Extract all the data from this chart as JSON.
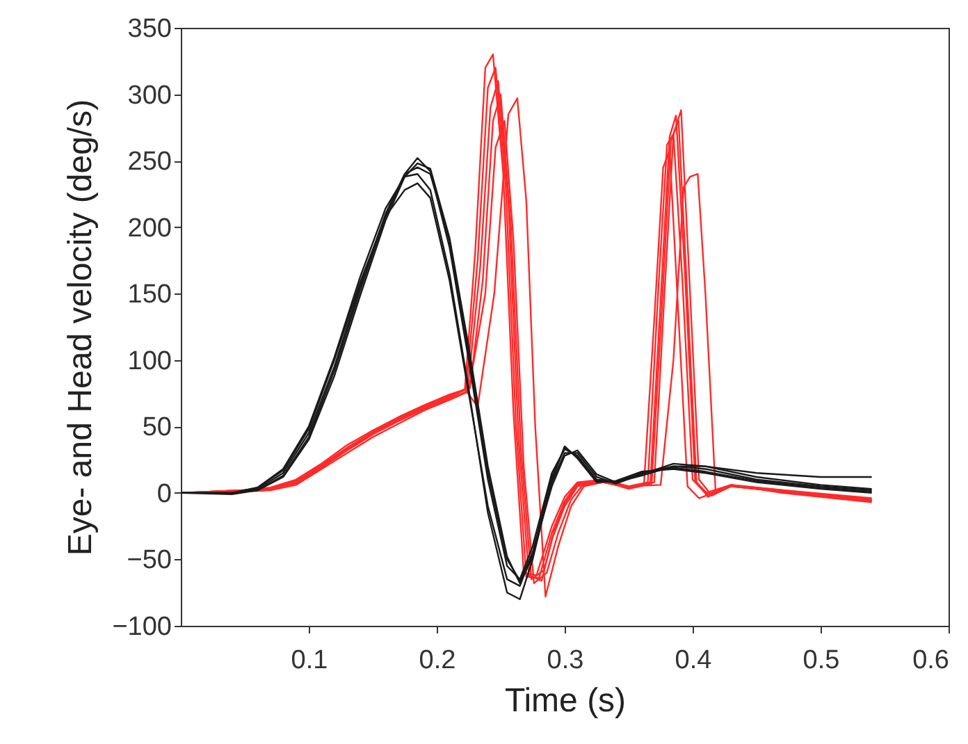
{
  "chart_data": {
    "type": "line",
    "xlabel": "Time (s)",
    "ylabel": "Eye- and Head velocity (deg/s)",
    "xlim": [
      0,
      0.6
    ],
    "xticks": [
      0.1,
      0.2,
      0.3,
      0.4,
      0.5,
      0.6
    ],
    "ylim": [
      -100,
      350
    ],
    "yticks": [
      -100,
      -50,
      0,
      50,
      100,
      150,
      200,
      250,
      300,
      350
    ],
    "line_style": "solid",
    "marker": "none",
    "series": [
      {
        "color": "#ff2a2a",
        "x": [
          0,
          0.05,
          0.07,
          0.09,
          0.11,
          0.13,
          0.15,
          0.17,
          0.19,
          0.21,
          0.222,
          0.23,
          0.238,
          0.244,
          0.252,
          0.26,
          0.268,
          0.278,
          0.29,
          0.3,
          0.31,
          0.33,
          0.35,
          0.365,
          0.373,
          0.38,
          0.385,
          0.392,
          0.4,
          0.41,
          0.43,
          0.47,
          0.54
        ],
        "values": [
          0,
          2,
          3,
          8,
          20,
          33,
          45,
          55,
          64,
          72,
          78,
          180,
          320,
          330,
          240,
          60,
          -60,
          -62,
          -25,
          -3,
          8,
          10,
          5,
          8,
          150,
          262,
          270,
          160,
          10,
          0,
          6,
          2,
          -4
        ]
      },
      {
        "color": "#ff2a2a",
        "x": [
          0,
          0.05,
          0.07,
          0.09,
          0.11,
          0.13,
          0.15,
          0.17,
          0.19,
          0.21,
          0.224,
          0.234,
          0.242,
          0.248,
          0.256,
          0.264,
          0.272,
          0.282,
          0.29,
          0.3,
          0.31,
          0.33,
          0.35,
          0.37,
          0.378,
          0.385,
          0.391,
          0.397,
          0.405,
          0.415,
          0.43,
          0.47,
          0.54
        ],
        "values": [
          0,
          1,
          2,
          6,
          18,
          30,
          42,
          52,
          62,
          70,
          76,
          170,
          290,
          310,
          220,
          40,
          -62,
          -66,
          -35,
          -10,
          5,
          8,
          4,
          8,
          150,
          270,
          288,
          170,
          10,
          -2,
          5,
          1,
          -6
        ]
      },
      {
        "color": "#ff2a2a",
        "x": [
          0,
          0.05,
          0.07,
          0.09,
          0.11,
          0.13,
          0.15,
          0.17,
          0.19,
          0.21,
          0.226,
          0.236,
          0.244,
          0.25,
          0.258,
          0.266,
          0.274,
          0.284,
          0.292,
          0.3,
          0.31,
          0.33,
          0.35,
          0.368,
          0.376,
          0.383,
          0.389,
          0.395,
          0.403,
          0.412,
          0.43,
          0.47,
          0.54
        ],
        "values": [
          0,
          2,
          4,
          10,
          22,
          36,
          47,
          57,
          66,
          74,
          79,
          160,
          280,
          300,
          200,
          30,
          -65,
          -58,
          -28,
          -8,
          6,
          9,
          3,
          7,
          140,
          265,
          280,
          165,
          8,
          -3,
          6,
          0,
          -7
        ]
      },
      {
        "color": "#ff2a2a",
        "x": [
          0,
          0.05,
          0.07,
          0.09,
          0.11,
          0.13,
          0.15,
          0.17,
          0.19,
          0.21,
          0.225,
          0.238,
          0.246,
          0.253,
          0.26,
          0.268,
          0.276,
          0.286,
          0.295,
          0.305,
          0.315,
          0.33,
          0.35,
          0.362,
          0.37,
          0.377,
          0.382,
          0.388,
          0.396,
          0.405,
          0.43,
          0.47,
          0.54
        ],
        "values": [
          0,
          1,
          3,
          7,
          19,
          32,
          44,
          54,
          63,
          71,
          77,
          150,
          260,
          280,
          190,
          20,
          -68,
          -60,
          -30,
          -5,
          7,
          8,
          4,
          7,
          130,
          245,
          258,
          150,
          5,
          -4,
          5,
          1,
          -5
        ]
      },
      {
        "color": "#ff2a2a",
        "x": [
          0,
          0.05,
          0.07,
          0.09,
          0.11,
          0.13,
          0.15,
          0.17,
          0.19,
          0.21,
          0.222,
          0.232,
          0.245,
          0.256,
          0.263,
          0.27,
          0.277,
          0.285,
          0.295,
          0.305,
          0.315,
          0.33,
          0.35,
          0.375,
          0.385,
          0.393,
          0.398,
          0.404,
          0.41,
          0.418,
          0.43,
          0.47,
          0.54
        ],
        "values": [
          0,
          2,
          3,
          9,
          21,
          34,
          46,
          56,
          65,
          73,
          78,
          65,
          150,
          285,
          297,
          220,
          50,
          -78,
          -40,
          -10,
          5,
          8,
          5,
          6,
          100,
          230,
          238,
          240,
          150,
          0,
          5,
          1,
          -6
        ]
      },
      {
        "color": "#ff2a2a",
        "x": [
          0,
          0.05,
          0.07,
          0.09,
          0.11,
          0.13,
          0.15,
          0.17,
          0.19,
          0.21,
          0.223,
          0.232,
          0.24,
          0.246,
          0.254,
          0.262,
          0.27,
          0.28,
          0.29,
          0.3,
          0.31,
          0.33,
          0.35,
          0.367,
          0.375,
          0.382,
          0.387,
          0.394,
          0.402,
          0.412,
          0.43,
          0.47,
          0.54
        ],
        "values": [
          0,
          2,
          3,
          8,
          20,
          34,
          45,
          55,
          64,
          72,
          78,
          175,
          305,
          320,
          230,
          50,
          -63,
          -64,
          -30,
          -6,
          7,
          9,
          4,
          8,
          145,
          268,
          284,
          165,
          9,
          -1,
          6,
          2,
          -5
        ]
      },
      {
        "color": "#1a1a1a",
        "x": [
          0,
          0.04,
          0.06,
          0.08,
          0.1,
          0.12,
          0.14,
          0.16,
          0.175,
          0.185,
          0.195,
          0.21,
          0.225,
          0.24,
          0.255,
          0.265,
          0.275,
          0.29,
          0.3,
          0.31,
          0.325,
          0.34,
          0.36,
          0.385,
          0.41,
          0.45,
          0.5,
          0.54
        ],
        "values": [
          0,
          0,
          3,
          15,
          45,
          95,
          155,
          210,
          240,
          252,
          242,
          185,
          100,
          10,
          -55,
          -65,
          -40,
          15,
          33,
          28,
          10,
          8,
          15,
          20,
          18,
          10,
          5,
          2
        ]
      },
      {
        "color": "#1a1a1a",
        "x": [
          0,
          0.04,
          0.06,
          0.08,
          0.1,
          0.12,
          0.14,
          0.16,
          0.175,
          0.185,
          0.195,
          0.21,
          0.225,
          0.24,
          0.255,
          0.265,
          0.275,
          0.29,
          0.3,
          0.31,
          0.325,
          0.34,
          0.36,
          0.385,
          0.41,
          0.45,
          0.5,
          0.54
        ],
        "values": [
          0,
          0,
          2,
          12,
          40,
          88,
          148,
          205,
          238,
          248,
          244,
          192,
          110,
          20,
          -48,
          -68,
          -48,
          8,
          30,
          30,
          12,
          7,
          14,
          22,
          20,
          12,
          6,
          3
        ]
      },
      {
        "color": "#1a1a1a",
        "x": [
          0,
          0.04,
          0.06,
          0.08,
          0.1,
          0.12,
          0.14,
          0.16,
          0.175,
          0.185,
          0.195,
          0.21,
          0.225,
          0.24,
          0.255,
          0.265,
          0.275,
          0.29,
          0.3,
          0.31,
          0.325,
          0.34,
          0.36,
          0.385,
          0.41,
          0.45,
          0.5,
          0.54
        ],
        "values": [
          0,
          0,
          4,
          18,
          50,
          102,
          162,
          214,
          238,
          240,
          228,
          165,
          78,
          -15,
          -75,
          -80,
          -50,
          10,
          35,
          26,
          8,
          9,
          16,
          18,
          15,
          8,
          3,
          0
        ]
      },
      {
        "color": "#1a1a1a",
        "x": [
          0,
          0.04,
          0.06,
          0.08,
          0.1,
          0.12,
          0.14,
          0.16,
          0.175,
          0.185,
          0.195,
          0.21,
          0.225,
          0.24,
          0.255,
          0.265,
          0.275,
          0.29,
          0.3,
          0.31,
          0.325,
          0.34,
          0.36,
          0.385,
          0.41,
          0.45,
          0.5,
          0.54
        ],
        "values": [
          0,
          0,
          4,
          17,
          48,
          100,
          158,
          208,
          228,
          233,
          222,
          160,
          75,
          -10,
          -65,
          -70,
          -45,
          12,
          34,
          27,
          9,
          8,
          15,
          19,
          16,
          9,
          4,
          1
        ]
      },
      {
        "color": "#1a1a1a",
        "x": [
          0,
          0.04,
          0.06,
          0.08,
          0.1,
          0.12,
          0.14,
          0.16,
          0.175,
          0.185,
          0.195,
          0.21,
          0.225,
          0.24,
          0.255,
          0.265,
          0.275,
          0.29,
          0.3,
          0.31,
          0.325,
          0.34,
          0.36,
          0.385,
          0.41,
          0.45,
          0.5,
          0.54
        ],
        "values": [
          0,
          -1,
          2,
          13,
          42,
          92,
          152,
          208,
          240,
          245,
          240,
          190,
          105,
          15,
          -50,
          -66,
          -45,
          5,
          28,
          32,
          14,
          8,
          13,
          20,
          20,
          15,
          12,
          12
        ]
      }
    ]
  }
}
